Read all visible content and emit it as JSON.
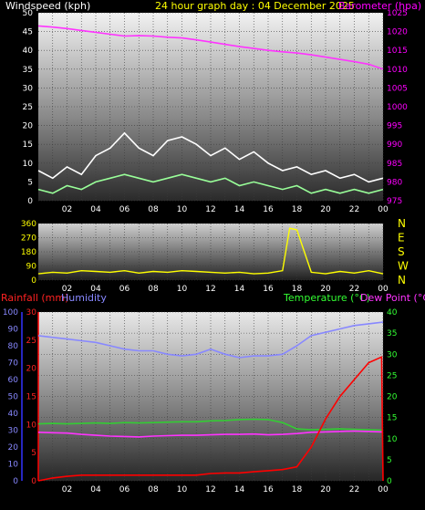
{
  "header": {
    "left_label": "Windspeed (kph)",
    "center_label": "24 hour graph day : 04 December 2025",
    "right_label": "Barometer (hpa)",
    "left_color": "#ffffff",
    "center_color": "#ffff00",
    "right_color": "#ff00ff"
  },
  "time_ticks": [
    "02",
    "04",
    "06",
    "08",
    "10",
    "12",
    "14",
    "16",
    "18",
    "20",
    "22",
    "00"
  ],
  "chart_data": [
    {
      "type": "line",
      "id": "wind-baro",
      "x_unit": "hours",
      "xlim": [
        0,
        24
      ],
      "left_axis": {
        "label": "Windspeed (kph)",
        "ticks": [
          "0",
          "5",
          "10",
          "15",
          "20",
          "25",
          "30",
          "35",
          "40",
          "45",
          "50"
        ],
        "ylim": [
          0,
          50
        ]
      },
      "right_axis": {
        "label": "Barometer (hpa)",
        "ticks": [
          "975",
          "980",
          "985",
          "990",
          "995",
          "1000",
          "1005",
          "1010",
          "1015",
          "1020",
          "1025"
        ],
        "ylim": [
          975,
          1025
        ]
      },
      "grid": true,
      "series": [
        {
          "axis": "right",
          "color": "#ff33ff",
          "x": [
            0,
            1,
            2,
            3,
            4,
            5,
            6,
            7,
            8,
            9,
            10,
            11,
            12,
            13,
            14,
            15,
            16,
            17,
            18,
            19,
            20,
            21,
            22,
            23,
            24
          ],
          "y": [
            1021.5,
            1021.2,
            1020.8,
            1020.3,
            1019.8,
            1019.3,
            1018.8,
            1018.9,
            1018.8,
            1018.5,
            1018.3,
            1017.8,
            1017.2,
            1016.6,
            1016.0,
            1015.5,
            1015.0,
            1014.6,
            1014.3,
            1013.8,
            1013.2,
            1012.6,
            1012.0,
            1011.3,
            1010.0
          ]
        },
        {
          "axis": "left",
          "color": "#ffffff",
          "x": [
            0,
            1,
            2,
            3,
            4,
            5,
            6,
            7,
            8,
            9,
            10,
            11,
            12,
            13,
            14,
            15,
            16,
            17,
            18,
            19,
            20,
            21,
            22,
            23,
            24
          ],
          "y": [
            8,
            6,
            9,
            7,
            12,
            14,
            18,
            14,
            12,
            16,
            17,
            15,
            12,
            14,
            11,
            13,
            10,
            8,
            9,
            7,
            8,
            6,
            7,
            5,
            6
          ]
        },
        {
          "axis": "left",
          "color": "#99ff99",
          "x": [
            0,
            1,
            2,
            3,
            4,
            5,
            6,
            7,
            8,
            9,
            10,
            11,
            12,
            13,
            14,
            15,
            16,
            17,
            18,
            19,
            20,
            21,
            22,
            23,
            24
          ],
          "y": [
            3,
            2,
            4,
            3,
            5,
            6,
            7,
            6,
            5,
            6,
            7,
            6,
            5,
            6,
            4,
            5,
            4,
            3,
            4,
            2,
            3,
            2,
            3,
            2,
            3
          ]
        }
      ]
    },
    {
      "type": "line",
      "id": "wind-direction",
      "x_unit": "hours",
      "xlim": [
        0,
        24
      ],
      "left_axis": {
        "ticks": [
          "0",
          "90",
          "180",
          "270",
          "360"
        ],
        "ylim": [
          0,
          360
        ]
      },
      "right_axis": {
        "ticks": [
          "N",
          "W",
          "S",
          "E",
          "N"
        ]
      },
      "grid": true,
      "series": [
        {
          "color": "#ffff00",
          "x": [
            0,
            1,
            2,
            3,
            4,
            5,
            6,
            7,
            8,
            9,
            10,
            11,
            12,
            13,
            14,
            15,
            16,
            17,
            17.5,
            18,
            19,
            20,
            21,
            22,
            23,
            24
          ],
          "y": [
            40,
            50,
            45,
            60,
            55,
            50,
            60,
            45,
            55,
            50,
            60,
            55,
            50,
            45,
            50,
            40,
            45,
            60,
            330,
            320,
            50,
            40,
            55,
            45,
            60,
            40
          ]
        }
      ]
    },
    {
      "type": "line",
      "id": "rain-temp",
      "x_unit": "hours",
      "xlim": [
        0,
        24
      ],
      "labels": {
        "rainfall": "Rainfall (mm)",
        "humidity": "Humidity",
        "temperature": "Temperature (°C)",
        "dew_point": "Dew Point (°C)"
      },
      "humidity_axis": {
        "ticks": [
          "0",
          "10",
          "20",
          "30",
          "40",
          "50",
          "60",
          "70",
          "80",
          "90",
          "100"
        ],
        "ylim": [
          0,
          100
        ]
      },
      "rain_axis": {
        "ticks": [
          "0",
          "5",
          "10",
          "15",
          "20",
          "25",
          "30"
        ],
        "ylim": [
          0,
          30
        ]
      },
      "temp_axis": {
        "ticks": [
          "0",
          "5",
          "10",
          "15",
          "20",
          "25",
          "30",
          "35",
          "40"
        ],
        "ylim": [
          0,
          40
        ]
      },
      "grid": true,
      "series": [
        {
          "name": "Humidity",
          "axis": "humidity",
          "color": "#8888ff",
          "x": [
            0,
            1,
            2,
            3,
            4,
            5,
            6,
            7,
            8,
            9,
            10,
            11,
            12,
            13,
            14,
            15,
            16,
            17,
            18,
            19,
            20,
            21,
            22,
            23,
            24
          ],
          "y": [
            86,
            85,
            84,
            83,
            82,
            80,
            78,
            77,
            77,
            75,
            74,
            75,
            78,
            75,
            73,
            74,
            74,
            75,
            80,
            86,
            88,
            90,
            92,
            93,
            94
          ]
        },
        {
          "name": "Temperature (°C)",
          "axis": "temp",
          "color": "#33cc33",
          "x": [
            0,
            1,
            2,
            3,
            4,
            5,
            6,
            7,
            8,
            9,
            10,
            11,
            12,
            13,
            14,
            15,
            16,
            17,
            18,
            19,
            20,
            21,
            22,
            23,
            24
          ],
          "y": [
            13.5,
            13.6,
            13.5,
            13.6,
            13.7,
            13.6,
            13.8,
            13.7,
            13.8,
            13.9,
            14.0,
            14.0,
            14.2,
            14.3,
            14.5,
            14.6,
            14.5,
            13.8,
            12.3,
            12.1,
            12.2,
            12.3,
            12.2,
            12.1,
            12.0
          ]
        },
        {
          "name": "Dew Point (°C)",
          "axis": "temp",
          "color": "#ff33ff",
          "x": [
            0,
            1,
            2,
            3,
            4,
            5,
            6,
            7,
            8,
            9,
            10,
            11,
            12,
            13,
            14,
            15,
            16,
            17,
            18,
            19,
            20,
            21,
            22,
            23,
            24
          ],
          "y": [
            11.5,
            11.4,
            11.3,
            11.0,
            10.8,
            10.6,
            10.5,
            10.4,
            10.6,
            10.7,
            10.8,
            10.8,
            10.9,
            11.0,
            11.0,
            11.1,
            10.9,
            11.0,
            11.2,
            11.5,
            11.6,
            11.7,
            11.8,
            11.7,
            11.6
          ]
        },
        {
          "name": "Rainfall (mm)",
          "axis": "rain",
          "color": "#ff0000",
          "x": [
            0,
            1,
            2,
            3,
            4,
            5,
            6,
            7,
            8,
            9,
            10,
            11,
            12,
            13,
            14,
            15,
            16,
            17,
            18,
            19,
            20,
            21,
            22,
            23,
            23.9,
            24
          ],
          "y": [
            0,
            0.5,
            0.8,
            1,
            1,
            1,
            1,
            1,
            1,
            1,
            1,
            1,
            1.3,
            1.4,
            1.4,
            1.6,
            1.8,
            2,
            2.5,
            6,
            11,
            15,
            18,
            21,
            22,
            0
          ]
        }
      ]
    }
  ]
}
